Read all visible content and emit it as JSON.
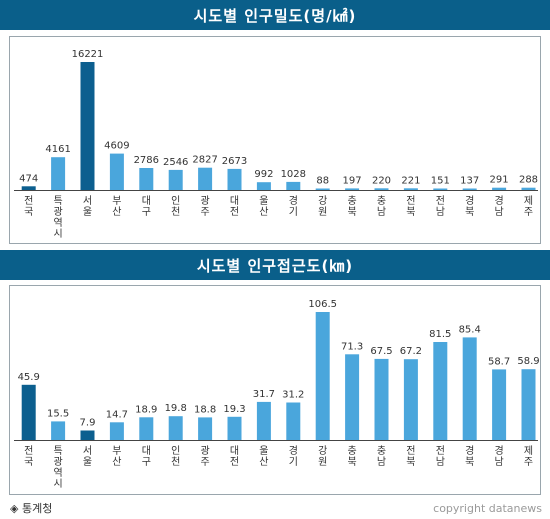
{
  "source": "◈ 통계청",
  "copyright": "copyright datanews",
  "colors": {
    "title_bg": "#0a5f8a",
    "highlight_bar": "#0c5f8f",
    "normal_bar": "#4aa6dc",
    "baseline": "#444444"
  },
  "chart_data": [
    {
      "type": "bar",
      "title": "시도별 인구밀도(명/㎢)",
      "categories": [
        "전국",
        "특광역시",
        "서울",
        "부산",
        "대구",
        "인천",
        "광주",
        "대전",
        "울산",
        "경기",
        "강원",
        "충북",
        "충남",
        "전북",
        "전남",
        "경북",
        "경남",
        "제주"
      ],
      "values": [
        474,
        4161,
        16221,
        4609,
        2786,
        2546,
        2827,
        2673,
        992,
        1028,
        88,
        197,
        220,
        221,
        151,
        137,
        291,
        288
      ],
      "value_labels": [
        "474",
        "4161",
        "16221",
        "4609",
        "2786",
        "2546",
        "2827",
        "2673",
        "992",
        "1028",
        "88",
        "197",
        "220",
        "221",
        "151",
        "137",
        "291",
        "288"
      ],
      "highlight": [
        "전국",
        "서울"
      ],
      "xlabel": "",
      "ylabel": "",
      "ylim": [
        0,
        16221
      ],
      "grid": false,
      "legend": "none"
    },
    {
      "type": "bar",
      "title": "시도별 인구접근도(㎞)",
      "categories": [
        "전국",
        "특광역시",
        "서울",
        "부산",
        "대구",
        "인천",
        "광주",
        "대전",
        "울산",
        "경기",
        "강원",
        "충북",
        "충남",
        "전북",
        "전남",
        "경북",
        "경남",
        "제주"
      ],
      "values": [
        45.9,
        15.5,
        7.9,
        14.7,
        18.9,
        19.8,
        18.8,
        19.3,
        31.7,
        31.2,
        106.5,
        71.3,
        67.5,
        67.2,
        81.5,
        85.4,
        58.7,
        58.9
      ],
      "value_labels": [
        "45.9",
        "15.5",
        "7.9",
        "14.7",
        "18.9",
        "19.8",
        "18.8",
        "19.3",
        "31.7",
        "31.2",
        "106.5",
        "71.3",
        "67.5",
        "67.2",
        "81.5",
        "85.4",
        "58.7",
        "58.9"
      ],
      "highlight": [
        "전국",
        "서울"
      ],
      "xlabel": "",
      "ylabel": "",
      "ylim": [
        0,
        106.5
      ],
      "grid": false,
      "legend": "none"
    }
  ]
}
